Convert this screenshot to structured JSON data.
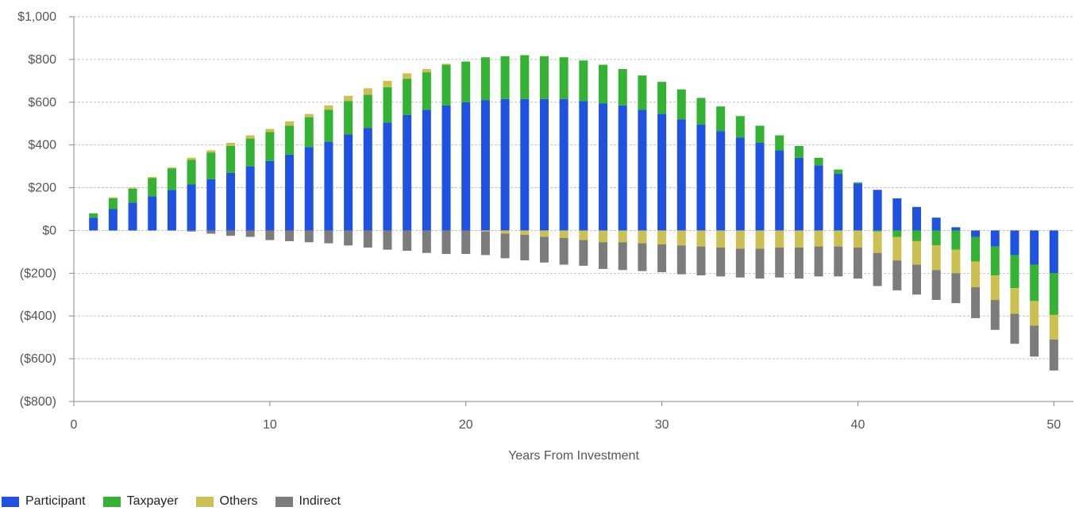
{
  "chart_data": {
    "type": "bar",
    "stacked": true,
    "title": "",
    "xlabel": "Years From Investment",
    "ylabel": "",
    "xlim": [
      0,
      51
    ],
    "ylim": [
      -800,
      1000
    ],
    "x_ticks": [
      0,
      10,
      20,
      30,
      40,
      50
    ],
    "y_ticks": [
      -800,
      -600,
      -400,
      -200,
      0,
      200,
      400,
      600,
      800,
      1000
    ],
    "y_tick_labels": [
      "($800)",
      "($600)",
      "($400)",
      "($200)",
      "$0",
      "$200",
      "$400",
      "$600",
      "$800",
      "$1,000"
    ],
    "grid": "horizontal dashed",
    "legend_position": "bottom-left",
    "x": [
      1,
      2,
      3,
      4,
      5,
      6,
      7,
      8,
      9,
      10,
      11,
      12,
      13,
      14,
      15,
      16,
      17,
      18,
      19,
      20,
      21,
      22,
      23,
      24,
      25,
      26,
      27,
      28,
      29,
      30,
      31,
      32,
      33,
      34,
      35,
      36,
      37,
      38,
      39,
      40,
      41,
      42,
      43,
      44,
      45,
      46,
      47,
      48,
      49,
      50
    ],
    "series": [
      {
        "name": "Participant",
        "color": "#1f52e0",
        "values": [
          60,
          100,
          130,
          160,
          190,
          215,
          240,
          270,
          300,
          325,
          355,
          390,
          415,
          450,
          480,
          505,
          540,
          565,
          585,
          600,
          610,
          615,
          615,
          615,
          615,
          605,
          595,
          585,
          565,
          545,
          520,
          495,
          465,
          435,
          410,
          375,
          340,
          305,
          265,
          220,
          190,
          150,
          110,
          60,
          15,
          -30,
          -75,
          -115,
          -160,
          -200
        ]
      },
      {
        "name": "Taxpayer",
        "color": "#33b233",
        "values": [
          20,
          50,
          65,
          85,
          100,
          115,
          125,
          125,
          130,
          135,
          135,
          140,
          150,
          155,
          155,
          165,
          170,
          175,
          190,
          190,
          200,
          200,
          205,
          200,
          195,
          190,
          180,
          170,
          160,
          150,
          140,
          125,
          115,
          100,
          80,
          70,
          55,
          35,
          20,
          5,
          -5,
          -30,
          -50,
          -70,
          -90,
          -115,
          -135,
          -155,
          -170,
          -195
        ]
      },
      {
        "name": "Others",
        "color": "#cbc051",
        "values": [
          0,
          5,
          5,
          5,
          5,
          10,
          10,
          15,
          15,
          15,
          20,
          15,
          20,
          25,
          30,
          30,
          25,
          15,
          5,
          0,
          -5,
          -15,
          -20,
          -30,
          -35,
          -45,
          -55,
          -55,
          -60,
          -65,
          -70,
          -75,
          -80,
          -85,
          -85,
          -80,
          -80,
          -75,
          -75,
          -80,
          -100,
          -110,
          -110,
          -115,
          -110,
          -120,
          -115,
          -120,
          -115,
          -115
        ]
      },
      {
        "name": "Indirect",
        "color": "#7c7c7c",
        "values": [
          0,
          0,
          0,
          0,
          0,
          -5,
          -15,
          -25,
          -30,
          -45,
          -50,
          -55,
          -60,
          -70,
          -80,
          -90,
          -95,
          -105,
          -110,
          -110,
          -110,
          -115,
          -120,
          -120,
          -125,
          -120,
          -125,
          -130,
          -130,
          -130,
          -135,
          -135,
          -135,
          -135,
          -140,
          -140,
          -145,
          -140,
          -140,
          -145,
          -155,
          -140,
          -140,
          -140,
          -140,
          -145,
          -140,
          -140,
          -145,
          -145
        ]
      }
    ]
  }
}
